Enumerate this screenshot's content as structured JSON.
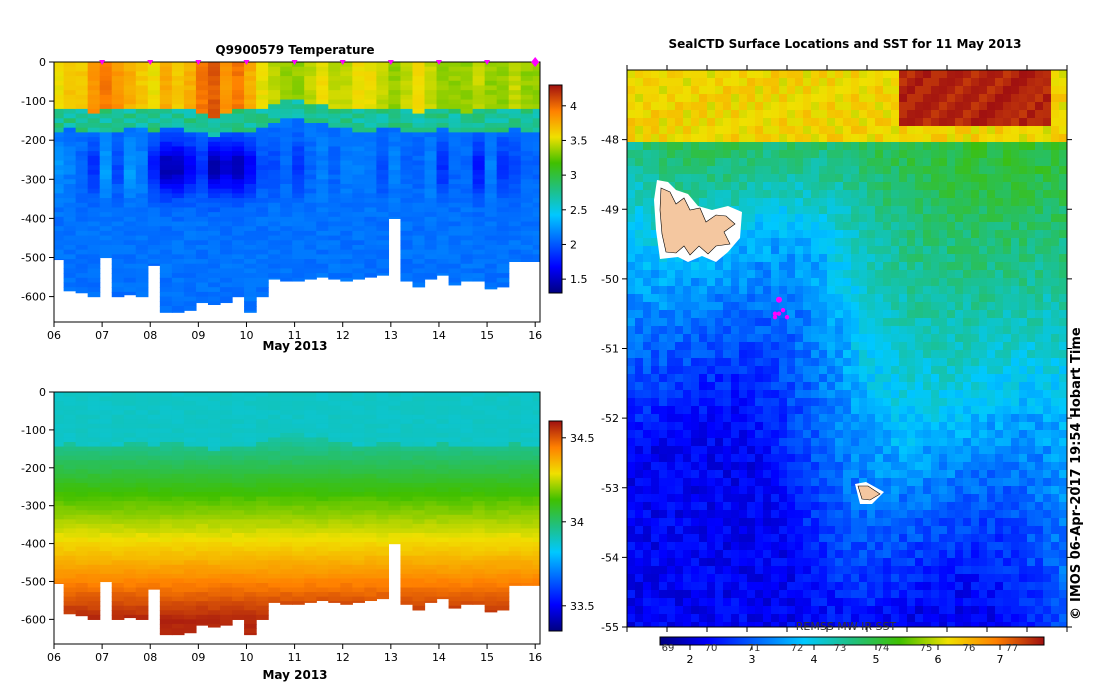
{
  "chart_data": [
    {
      "type": "heatmap",
      "title": "Q9900579  Temperature",
      "xlabel": "May 2013",
      "ylabel": "",
      "x_ticks": [
        "06",
        "07",
        "08",
        "09",
        "10",
        "11",
        "12",
        "13",
        "14",
        "15",
        "16"
      ],
      "y_ticks": [
        "0",
        "-100",
        "-200",
        "-300",
        "-400",
        "-500",
        "-600"
      ],
      "xlim": [
        6,
        16.1
      ],
      "ylim": [
        -665,
        0
      ],
      "colorbar": {
        "ticks": [
          "1.5",
          "2",
          "2.5",
          "3",
          "3.5",
          "4"
        ],
        "range": [
          1.3,
          4.3
        ]
      },
      "profile_markers_day": [
        7,
        8,
        9,
        10,
        11,
        12,
        13,
        14,
        15,
        16
      ],
      "profiles_day": [
        6.0,
        6.2,
        6.45,
        6.7,
        6.95,
        7.2,
        7.45,
        7.7,
        7.95,
        8.2,
        8.45,
        8.7,
        8.95,
        9.2,
        9.45,
        9.7,
        9.95,
        10.2,
        10.45,
        10.7,
        10.95,
        11.2,
        11.45,
        11.7,
        11.95,
        12.2,
        12.45,
        12.7,
        12.95,
        13.2,
        13.45,
        13.7,
        13.95,
        14.2,
        14.45,
        14.7,
        14.95,
        15.2,
        15.45,
        15.7,
        15.95
      ],
      "profiles_maxdepth": [
        -505,
        -585,
        -590,
        -600,
        -500,
        -600,
        -595,
        -600,
        -520,
        -640,
        -640,
        -635,
        -615,
        -620,
        -615,
        -600,
        -640,
        -600,
        -555,
        -560,
        -560,
        -555,
        -550,
        -555,
        -560,
        -555,
        -550,
        -545,
        -400,
        -560,
        -575,
        -555,
        -545,
        -570,
        -560,
        -560,
        -580,
        -575,
        -510,
        -510,
        -510
      ],
      "profiles_surface_temp": [
        3.6,
        3.7,
        3.7,
        3.9,
        4.0,
        3.9,
        3.8,
        3.7,
        3.6,
        3.8,
        3.7,
        3.8,
        4.0,
        4.1,
        3.9,
        4.0,
        3.8,
        3.6,
        3.5,
        3.4,
        3.4,
        3.5,
        3.6,
        3.5,
        3.5,
        3.6,
        3.6,
        3.5,
        3.4,
        3.5,
        3.6,
        3.5,
        3.4,
        3.4,
        3.4,
        3.5,
        3.4,
        3.4,
        3.5,
        3.4,
        3.4
      ],
      "profiles_thermocline_depth": [
        -150,
        -140,
        -150,
        -160,
        -150,
        -150,
        -140,
        -140,
        -150,
        -140,
        -140,
        -150,
        -160,
        -170,
        -160,
        -150,
        -150,
        -140,
        -130,
        -120,
        -120,
        -130,
        -130,
        -140,
        -140,
        -150,
        -150,
        -140,
        -140,
        -150,
        -160,
        -150,
        -140,
        -150,
        -160,
        -150,
        -150,
        -150,
        -140,
        -150,
        -150
      ],
      "profiles_min_temp": [
        2.3,
        2.2,
        2.1,
        1.9,
        2.3,
        2.0,
        2.3,
        2.2,
        1.8,
        1.5,
        1.5,
        1.7,
        1.9,
        1.5,
        1.6,
        1.5,
        1.7,
        2.0,
        2.0,
        2.1,
        1.9,
        2.1,
        2.2,
        2.1,
        2.2,
        2.2,
        2.2,
        2.0,
        2.2,
        2.1,
        2.1,
        2.2,
        1.9,
        2.1,
        2.1,
        1.8,
        2.2,
        1.9,
        2.0,
        2.1,
        2.1
      ]
    },
    {
      "type": "heatmap",
      "title": "",
      "xlabel": "May 2013",
      "ylabel": "",
      "x_ticks": [
        "06",
        "07",
        "08",
        "09",
        "10",
        "11",
        "12",
        "13",
        "14",
        "15",
        "16"
      ],
      "y_ticks": [
        "0",
        "-100",
        "-200",
        "-300",
        "-400",
        "-500",
        "-600"
      ],
      "xlim": [
        6,
        16.1
      ],
      "ylim": [
        -665,
        0
      ],
      "colorbar": {
        "ticks": [
          "33.5",
          "34",
          "34.5"
        ],
        "range": [
          33.35,
          34.6
        ]
      },
      "profiles_surface_sal": [
        33.9,
        33.9,
        33.85,
        33.9,
        33.9,
        33.9,
        33.9,
        33.9,
        33.85,
        33.9,
        33.9,
        33.9,
        33.9,
        33.85,
        33.9,
        33.85,
        33.9,
        33.9,
        33.9,
        33.9,
        33.9,
        33.9,
        33.9,
        33.9,
        33.9,
        33.9,
        33.9,
        33.9,
        33.85,
        33.9,
        33.9,
        33.9,
        33.9,
        33.9,
        33.9,
        33.9,
        33.9,
        33.9,
        33.9,
        33.9,
        33.9
      ]
    },
    {
      "type": "heatmap",
      "title": "SealCTD Surface Locations and SST for 11 May 2013",
      "xlabel": "",
      "ylabel": "",
      "y_ticks": [
        "-48",
        "-49",
        "-50",
        "-51",
        "-52",
        "-53",
        "-54",
        "-55"
      ],
      "ylim": [
        -55.0,
        -47.0
      ],
      "colorbar": {
        "label": "REMSS  MW-IR SST",
        "ticks_degC": [
          "2",
          "3",
          "4",
          "5",
          "6",
          "7"
        ],
        "ticks_degF": [
          "69",
          "70",
          "71",
          "72",
          "73",
          "74",
          "75",
          "76",
          "77"
        ]
      },
      "colors": {
        "land": "#f4c7a0",
        "seal_positions": "#ff00ff"
      },
      "seal_positions": [
        [
          -50.3,
          -49.0
        ],
        [
          -50.5,
          -49.05
        ],
        [
          -50.55,
          -49.15
        ],
        [
          -50.45,
          -48.95
        ],
        [
          -50.5,
          -49.1
        ],
        [
          -50.55,
          -49.0
        ]
      ],
      "credit": "IMOS 06-Apr-2017 19:54 Hobart Time",
      "credit_symbol": "©"
    }
  ]
}
